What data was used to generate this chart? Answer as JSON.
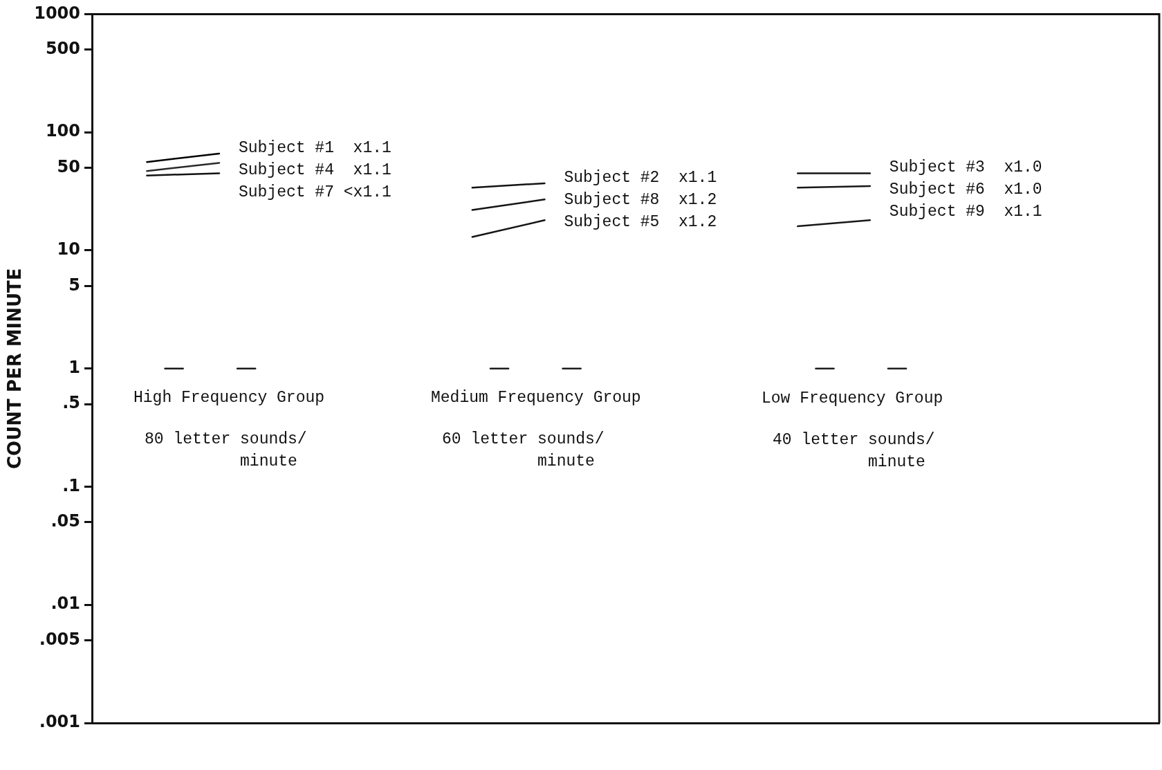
{
  "chart_data": {
    "type": "line",
    "ylabel": "COUNT PER MINUTE",
    "log": "y",
    "grid": false,
    "marker": "none",
    "line_style": "solid",
    "tick_labels": "y",
    "categories": [
      null,
      null,
      null,
      null,
      null,
      null,
      null,
      null,
      null,
      null,
      null,
      null,
      null,
      null,
      null,
      null,
      null,
      null,
      null,
      null,
      null,
      null,
      null,
      null,
      null,
      null,
      null,
      null,
      null,
      null,
      null,
      null,
      null,
      null,
      null,
      null,
      null,
      null,
      null,
      null,
      null,
      null,
      null,
      null,
      null,
      null,
      null,
      null,
      null,
      null,
      null,
      null,
      null,
      null,
      null,
      null,
      null,
      null,
      null,
      null
    ],
    "ylim": [
      0.001,
      1000
    ],
    "yticks": [
      1000,
      500,
      100,
      50,
      10,
      5,
      1,
      {
        "value": 0.5,
        "label": ".5"
      },
      {
        "value": 0.1,
        "label": ".1"
      },
      {
        "value": 0.05,
        "label": ".05"
      },
      {
        "value": 0.01,
        "label": ".01"
      },
      {
        "value": 0.005,
        "label": ".005"
      },
      {
        "value": 0.001,
        "label": ".001"
      }
    ],
    "series": [
      {
        "name": "Subject #1  x1.1",
        "color": "#000000",
        "values": [
          null,
          null,
          null,
          56,
          null,
          null,
          null,
          66,
          null,
          null,
          null,
          null,
          null,
          null,
          null,
          null,
          null,
          null,
          null,
          null,
          null,
          null,
          null,
          null,
          null,
          null,
          null,
          null,
          null,
          null,
          null,
          null,
          null,
          null,
          null,
          null,
          null,
          null,
          null,
          null,
          null,
          null,
          null,
          null,
          null,
          null,
          null,
          null,
          null,
          null,
          null,
          null,
          null,
          null,
          null,
          null,
          null,
          null,
          null,
          null
        ]
      },
      {
        "name": "Subject #4  x1.1",
        "color": "#2a2a2a",
        "values": [
          null,
          null,
          null,
          47,
          null,
          null,
          null,
          55,
          null,
          null,
          null,
          null,
          null,
          null,
          null,
          null,
          null,
          null,
          null,
          null,
          null,
          null,
          null,
          null,
          null,
          null,
          null,
          null,
          null,
          null,
          null,
          null,
          null,
          null,
          null,
          null,
          null,
          null,
          null,
          null,
          null,
          null,
          null,
          null,
          null,
          null,
          null,
          null,
          null,
          null,
          null,
          null,
          null,
          null,
          null,
          null,
          null,
          null,
          null,
          null
        ]
      },
      {
        "name": "Subject #7 <x1.1",
        "color": "#121212",
        "values": [
          null,
          null,
          null,
          43,
          null,
          null,
          null,
          45,
          null,
          null,
          null,
          null,
          null,
          null,
          null,
          null,
          null,
          null,
          null,
          null,
          null,
          null,
          null,
          null,
          null,
          null,
          null,
          null,
          null,
          null,
          null,
          null,
          null,
          null,
          null,
          null,
          null,
          null,
          null,
          null,
          null,
          null,
          null,
          null,
          null,
          null,
          null,
          null,
          null,
          null,
          null,
          null,
          null,
          null,
          null,
          null,
          null,
          null,
          null,
          null
        ]
      },
      {
        "name": "Subject #2  x1.1",
        "color": "#131313",
        "values": [
          null,
          null,
          null,
          null,
          null,
          null,
          null,
          null,
          null,
          null,
          null,
          null,
          null,
          null,
          null,
          null,
          null,
          null,
          null,
          null,
          null,
          34,
          null,
          null,
          null,
          37,
          null,
          null,
          null,
          null,
          null,
          null,
          null,
          null,
          null,
          null,
          null,
          null,
          null,
          null,
          null,
          null,
          null,
          null,
          null,
          null,
          null,
          null,
          null,
          null,
          null,
          null,
          null,
          null,
          null,
          null,
          null,
          null,
          null,
          null
        ]
      },
      {
        "name": "Subject #8  x1.2",
        "color": "#141414",
        "values": [
          null,
          null,
          null,
          null,
          null,
          null,
          null,
          null,
          null,
          null,
          null,
          null,
          null,
          null,
          null,
          null,
          null,
          null,
          null,
          null,
          null,
          22,
          null,
          null,
          null,
          27,
          null,
          null,
          null,
          null,
          null,
          null,
          null,
          null,
          null,
          null,
          null,
          null,
          null,
          null,
          null,
          null,
          null,
          null,
          null,
          null,
          null,
          null,
          null,
          null,
          null,
          null,
          null,
          null,
          null,
          null,
          null,
          null,
          null,
          null
        ]
      },
      {
        "name": "Subject #5  x1.2",
        "color": "#151515",
        "values": [
          null,
          null,
          null,
          null,
          null,
          null,
          null,
          null,
          null,
          null,
          null,
          null,
          null,
          null,
          null,
          null,
          null,
          null,
          null,
          null,
          null,
          13,
          null,
          null,
          null,
          18,
          null,
          null,
          null,
          null,
          null,
          null,
          null,
          null,
          null,
          null,
          null,
          null,
          null,
          null,
          null,
          null,
          null,
          null,
          null,
          null,
          null,
          null,
          null,
          null,
          null,
          null,
          null,
          null,
          null,
          null,
          null,
          null,
          null,
          null
        ]
      },
      {
        "name": "Subject #3  x1.0",
        "color": "#161616",
        "values": [
          null,
          null,
          null,
          null,
          null,
          null,
          null,
          null,
          null,
          null,
          null,
          null,
          null,
          null,
          null,
          null,
          null,
          null,
          null,
          null,
          null,
          null,
          null,
          null,
          null,
          null,
          null,
          null,
          null,
          null,
          null,
          null,
          null,
          null,
          null,
          null,
          null,
          null,
          null,
          45,
          null,
          null,
          null,
          45,
          null,
          null,
          null,
          null,
          null,
          null,
          null,
          null,
          null,
          null,
          null,
          null,
          null,
          null,
          null,
          null
        ]
      },
      {
        "name": "Subject #6  x1.0",
        "color": "#171717",
        "values": [
          null,
          null,
          null,
          null,
          null,
          null,
          null,
          null,
          null,
          null,
          null,
          null,
          null,
          null,
          null,
          null,
          null,
          null,
          null,
          null,
          null,
          null,
          null,
          null,
          null,
          null,
          null,
          null,
          null,
          null,
          null,
          null,
          null,
          null,
          null,
          null,
          null,
          null,
          null,
          34,
          null,
          null,
          null,
          35,
          null,
          null,
          null,
          null,
          null,
          null,
          null,
          null,
          null,
          null,
          null,
          null,
          null,
          null,
          null,
          null
        ]
      },
      {
        "name": "Subject #9  x1.1",
        "color": "#181818",
        "values": [
          null,
          null,
          null,
          null,
          null,
          null,
          null,
          null,
          null,
          null,
          null,
          null,
          null,
          null,
          null,
          null,
          null,
          null,
          null,
          null,
          null,
          null,
          null,
          null,
          null,
          null,
          null,
          null,
          null,
          null,
          null,
          null,
          null,
          null,
          null,
          null,
          null,
          null,
          null,
          16,
          null,
          null,
          null,
          18,
          null,
          null,
          null,
          null,
          null,
          null,
          null,
          null,
          null,
          null,
          null,
          null,
          null,
          null,
          null,
          null
        ]
      },
      {
        "color": "#191919",
        "values": [
          null,
          null,
          null,
          null,
          1,
          1,
          null,
          null,
          null,
          null,
          null,
          null,
          null,
          null,
          null,
          null,
          null,
          null,
          null,
          null,
          null,
          null,
          null,
          null,
          null,
          null,
          null,
          null,
          null,
          null,
          null,
          null,
          null,
          null,
          null,
          null,
          null,
          null,
          null,
          null,
          null,
          null,
          null,
          null,
          null,
          null,
          null,
          null,
          null,
          null,
          null,
          null,
          null,
          null,
          null,
          null,
          null,
          null,
          null,
          null
        ]
      },
      {
        "color": "#1a1a1a",
        "values": [
          null,
          null,
          null,
          null,
          null,
          null,
          null,
          null,
          1,
          1,
          null,
          null,
          null,
          null,
          null,
          null,
          null,
          null,
          null,
          null,
          null,
          null,
          null,
          null,
          null,
          null,
          null,
          null,
          null,
          null,
          null,
          null,
          null,
          null,
          null,
          null,
          null,
          null,
          null,
          null,
          null,
          null,
          null,
          null,
          null,
          null,
          null,
          null,
          null,
          null,
          null,
          null,
          null,
          null,
          null,
          null,
          null,
          null,
          null,
          null
        ]
      },
      {
        "color": "#1b1b1b",
        "values": [
          null,
          null,
          null,
          null,
          null,
          null,
          null,
          null,
          null,
          null,
          null,
          null,
          null,
          null,
          null,
          null,
          null,
          null,
          null,
          null,
          null,
          null,
          1,
          1,
          null,
          null,
          null,
          null,
          null,
          null,
          null,
          null,
          null,
          null,
          null,
          null,
          null,
          null,
          null,
          null,
          null,
          null,
          null,
          null,
          null,
          null,
          null,
          null,
          null,
          null,
          null,
          null,
          null,
          null,
          null,
          null,
          null,
          null,
          null,
          null
        ]
      },
      {
        "color": "#1c1c1c",
        "values": [
          null,
          null,
          null,
          null,
          null,
          null,
          null,
          null,
          null,
          null,
          null,
          null,
          null,
          null,
          null,
          null,
          null,
          null,
          null,
          null,
          null,
          null,
          null,
          null,
          null,
          null,
          1,
          1,
          null,
          null,
          null,
          null,
          null,
          null,
          null,
          null,
          null,
          null,
          null,
          null,
          null,
          null,
          null,
          null,
          null,
          null,
          null,
          null,
          null,
          null,
          null,
          null,
          null,
          null,
          null,
          null,
          null,
          null,
          null,
          null
        ]
      },
      {
        "color": "#1d1d1d",
        "values": [
          null,
          null,
          null,
          null,
          null,
          null,
          null,
          null,
          null,
          null,
          null,
          null,
          null,
          null,
          null,
          null,
          null,
          null,
          null,
          null,
          null,
          null,
          null,
          null,
          null,
          null,
          null,
          null,
          null,
          null,
          null,
          null,
          null,
          null,
          null,
          null,
          null,
          null,
          null,
          null,
          1,
          1,
          null,
          null,
          null,
          null,
          null,
          null,
          null,
          null,
          null,
          null,
          null,
          null,
          null,
          null,
          null,
          null,
          null,
          null
        ]
      },
      {
        "color": "#1e1e1e",
        "values": [
          null,
          null,
          null,
          null,
          null,
          null,
          null,
          null,
          null,
          null,
          null,
          null,
          null,
          null,
          null,
          null,
          null,
          null,
          null,
          null,
          null,
          null,
          null,
          null,
          null,
          null,
          null,
          null,
          null,
          null,
          null,
          null,
          null,
          null,
          null,
          null,
          null,
          null,
          null,
          null,
          null,
          null,
          null,
          null,
          1,
          1,
          null,
          null,
          null,
          null,
          null,
          null,
          null,
          null,
          null,
          null,
          null,
          null,
          null,
          null
        ]
      }
    ],
    "annotations": [
      "High Frequency Group",
      "80 letter sounds/\nminute",
      "Medium Frequency Group",
      "60 letter sounds/\nminute",
      "Low Frequency Group",
      "40 letter sounds/\nminute"
    ]
  }
}
